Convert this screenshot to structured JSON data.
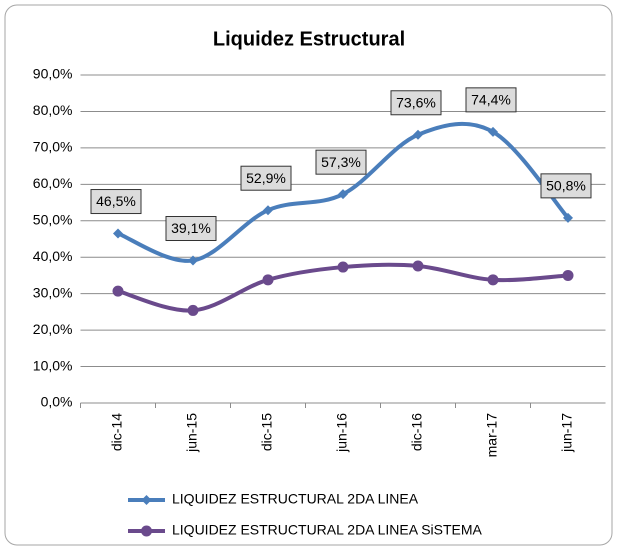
{
  "chart_data": {
    "type": "line",
    "title": "Liquidez Estructural",
    "categories": [
      "dic-14",
      "jun-15",
      "dic-15",
      "jun-16",
      "dic-16",
      "mar-17",
      "jun-17"
    ],
    "series": [
      {
        "name": "LIQUIDEZ ESTRUCTURAL 2DA LINEA",
        "color": "#4a7ebb",
        "marker": "diamond",
        "values": [
          46.5,
          39.1,
          52.9,
          57.3,
          73.6,
          74.4,
          50.8
        ],
        "value_labels": [
          "46,5%",
          "39,1%",
          "52,9%",
          "57,3%",
          "73,6%",
          "74,4%",
          "50,8%"
        ]
      },
      {
        "name": "LIQUIDEZ ESTRUCTURAL 2DA LINEA SiSTEMA",
        "color": "#6a4a8c",
        "marker": "circle",
        "values": [
          30.7,
          25.4,
          33.8,
          37.3,
          37.6,
          33.8,
          35.0
        ]
      }
    ],
    "ylim": [
      0,
      90
    ],
    "yticks": [
      {
        "value": 0,
        "label": "0,0%"
      },
      {
        "value": 10,
        "label": "10,0%"
      },
      {
        "value": 20,
        "label": "20,0%"
      },
      {
        "value": 30,
        "label": "30,0%"
      },
      {
        "value": 40,
        "label": "40,0%"
      },
      {
        "value": 50,
        "label": "50,0%"
      },
      {
        "value": 60,
        "label": "60,0%"
      },
      {
        "value": 70,
        "label": "70,0%"
      },
      {
        "value": 80,
        "label": "80,0%"
      },
      {
        "value": 90,
        "label": "90,0%"
      }
    ],
    "grid": true,
    "smooth": true,
    "legend": "bottom"
  }
}
